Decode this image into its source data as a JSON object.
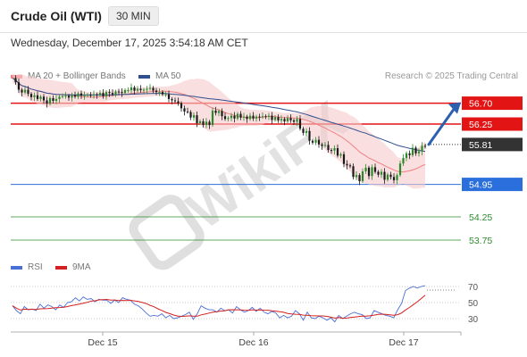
{
  "header": {
    "title": "Crude Oil (WTI)",
    "timeframe": "30 MIN",
    "datetime": "Wednesday, December 17, 2025 3:54:18 AM CET"
  },
  "legend": {
    "items": [
      {
        "label": "MA 20 + Bollinger Bands",
        "color": "#f08080"
      },
      {
        "label": "MA 50",
        "color": "#2f4f8f"
      }
    ],
    "credit": "Research © 2025 Trading Central",
    "rsi_items": [
      {
        "label": "RSI",
        "color": "#4a6fd4"
      },
      {
        "label": "9MA",
        "color": "#d42020"
      }
    ]
  },
  "chart_data": [
    {
      "type": "candlestick",
      "title": "Crude Oil (WTI)",
      "timeframe": "30 MIN",
      "x_tick_labels": [
        "Dec 15",
        "Dec 16",
        "Dec 17"
      ],
      "bars_per_day": 48,
      "ylim": [
        53.5,
        57.0
      ],
      "levels": [
        {
          "value": 56.7,
          "label": "56.70",
          "role": "resistance",
          "color": "#e31414"
        },
        {
          "value": 56.25,
          "label": "56.25",
          "role": "resistance",
          "color": "#e31414"
        },
        {
          "value": 55.81,
          "label": "55.81",
          "role": "last price",
          "color": "#333333"
        },
        {
          "value": 54.95,
          "label": "54.95",
          "role": "pivot",
          "color": "#2a6fdb"
        },
        {
          "value": 54.25,
          "label": "54.25",
          "role": "support",
          "color": "#2e8b2e"
        },
        {
          "value": 53.75,
          "label": "53.75",
          "role": "support",
          "color": "#2e8b2e"
        }
      ],
      "projection": {
        "from": 55.81,
        "to": 56.7,
        "direction": "up"
      },
      "close_series_approx": [
        57.24,
        57.15,
        56.99,
        56.93,
        56.99,
        56.9,
        56.83,
        56.87,
        56.79,
        56.84,
        56.76,
        56.69,
        56.81,
        56.75,
        56.79,
        56.84,
        56.85,
        56.86,
        56.82,
        56.87,
        56.84,
        56.91,
        56.86,
        56.87,
        56.88,
        56.87,
        56.89,
        56.88,
        56.92,
        56.85,
        56.94,
        56.92,
        56.89,
        56.95,
        56.94,
        56.92,
        56.98,
        56.98,
        57.04,
        56.97,
        57.01,
        56.98,
        56.99,
        57.01,
        57.03,
        56.97,
        56.94,
        56.94,
        56.89,
        56.89,
        56.79,
        56.76,
        56.74,
        56.7,
        56.59,
        56.52,
        56.51,
        56.39,
        56.44,
        56.27,
        56.31,
        56.23,
        56.3,
        56.23,
        56.54,
        56.49,
        56.53,
        56.42,
        56.36,
        56.38,
        56.43,
        56.37,
        56.47,
        56.39,
        56.41,
        56.36,
        56.43,
        56.37,
        56.41,
        56.4,
        56.42,
        56.41,
        56.43,
        56.34,
        56.4,
        56.33,
        56.36,
        56.31,
        56.38,
        56.33,
        56.3,
        56.36,
        56.15,
        56.06,
        56.1,
        55.89,
        55.85,
        55.91,
        55.81,
        55.78,
        55.8,
        55.69,
        55.68,
        55.73,
        55.57,
        55.6,
        55.39,
        55.36,
        55.34,
        55.11,
        55.15,
        55.02,
        55.23,
        55.31,
        55.13,
        55.32,
        55.22,
        55.16,
        55.22,
        55.05,
        55.16,
        55.11,
        55.04,
        55.15,
        55.4,
        55.52,
        55.62,
        55.58,
        55.74,
        55.62,
        55.66,
        55.78,
        55.76
      ]
    },
    {
      "type": "line",
      "title": "RSI",
      "series": [
        {
          "name": "RSI",
          "color": "#4a6fd4"
        },
        {
          "name": "9MA",
          "color": "#d42020"
        }
      ],
      "y_ticks": [
        70,
        50,
        30
      ],
      "ylim": [
        20,
        80
      ],
      "rsi_values_approx": [
        46,
        40,
        36,
        45,
        41,
        42,
        40,
        48,
        43,
        47,
        45,
        41,
        47,
        44,
        50,
        51,
        56,
        52,
        57,
        54,
        55,
        51,
        54,
        53,
        53,
        49,
        53,
        50,
        56,
        54,
        53,
        48,
        46,
        42,
        37,
        33,
        34,
        33,
        36,
        31,
        34,
        30,
        31,
        33,
        35,
        38,
        29,
        36,
        46,
        43,
        41,
        41,
        38,
        43,
        40,
        41,
        37,
        45,
        41,
        38,
        40,
        44,
        39,
        43,
        38,
        36,
        39,
        37,
        31,
        34,
        31,
        33,
        40,
        36,
        28,
        38,
        31,
        30,
        33,
        31,
        28,
        31,
        26,
        34,
        30,
        33,
        36,
        38,
        36,
        35,
        30,
        31,
        40,
        38,
        36,
        34,
        33,
        31,
        41,
        49,
        65,
        68,
        70,
        68,
        70,
        71
      ]
    }
  ]
}
